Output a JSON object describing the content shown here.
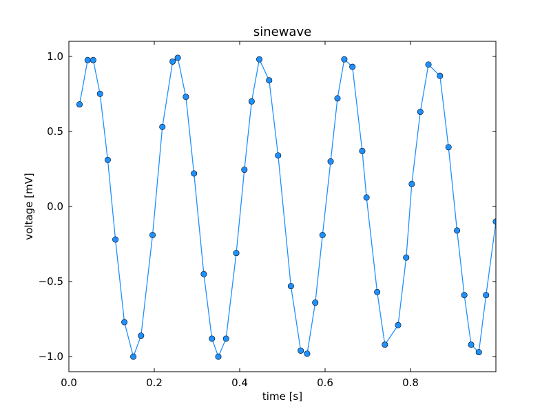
{
  "chart_data": {
    "type": "line",
    "title": "sinewave",
    "xlabel": "time [s]",
    "ylabel": "voltage [mV]",
    "xlim": [
      0.0,
      1.0
    ],
    "ylim": [
      -1.1,
      1.1
    ],
    "xticks": [
      0.0,
      0.2,
      0.4,
      0.6,
      0.8
    ],
    "xtick_labels": [
      "0.0",
      "0.2",
      "0.4",
      "0.6",
      "0.8"
    ],
    "yticks": [
      1.0,
      0.5,
      0.0,
      -0.5,
      -1.0
    ],
    "ytick_labels": [
      "1.0",
      "0.5",
      "0.0",
      "−0.5",
      "−1.0"
    ],
    "grid": false,
    "series": [
      {
        "color": "#1e90ff",
        "marker": "circle",
        "x": [
          0.025,
          0.044,
          0.057,
          0.073,
          0.091,
          0.109,
          0.13,
          0.151,
          0.169,
          0.196,
          0.219,
          0.243,
          0.255,
          0.274,
          0.293,
          0.316,
          0.335,
          0.35,
          0.368,
          0.392,
          0.411,
          0.428,
          0.446,
          0.469,
          0.49,
          0.52,
          0.543,
          0.558,
          0.577,
          0.594,
          0.613,
          0.629,
          0.645,
          0.664,
          0.687,
          0.697,
          0.722,
          0.74,
          0.771,
          0.79,
          0.803,
          0.823,
          0.842,
          0.869,
          0.889,
          0.909,
          0.926,
          0.942,
          0.96,
          0.977,
          1.0
        ],
        "y": [
          0.68,
          0.975,
          0.975,
          0.75,
          0.31,
          -0.22,
          -0.77,
          -1.0,
          -0.86,
          -0.19,
          0.53,
          0.965,
          0.99,
          0.73,
          0.22,
          -0.45,
          -0.88,
          -1.0,
          -0.88,
          -0.31,
          0.245,
          0.7,
          0.98,
          0.84,
          0.34,
          -0.53,
          -0.96,
          -0.98,
          -0.64,
          -0.19,
          0.3,
          0.72,
          0.98,
          0.93,
          0.37,
          0.06,
          -0.57,
          -0.92,
          -0.79,
          -0.34,
          0.15,
          0.63,
          0.945,
          0.87,
          0.395,
          -0.16,
          -0.59,
          -0.92,
          -0.97,
          -0.59,
          -0.1
        ]
      }
    ]
  }
}
